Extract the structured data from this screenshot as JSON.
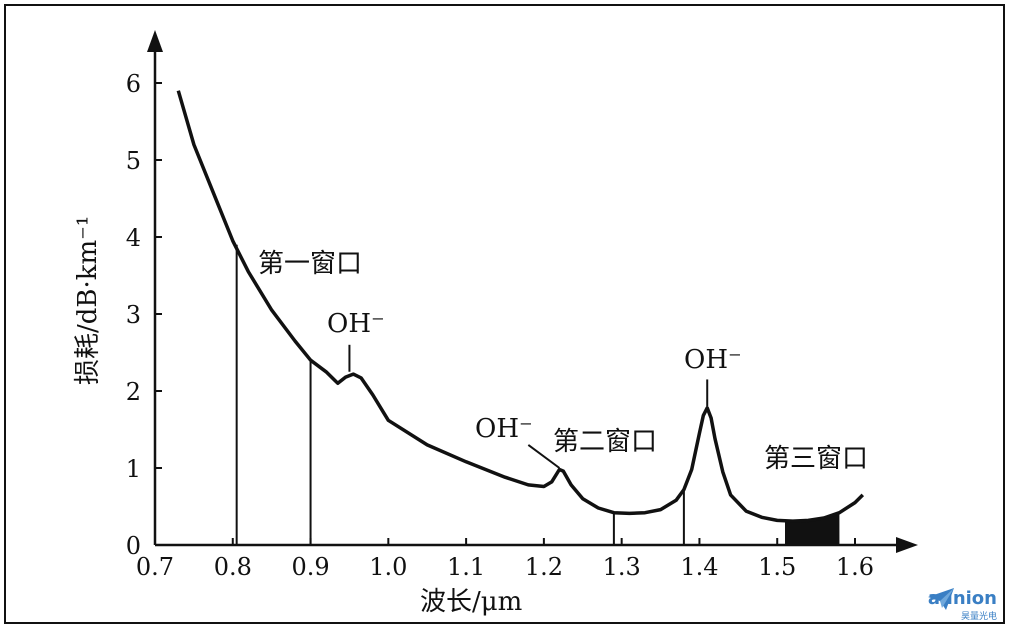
{
  "chart_data": {
    "type": "line",
    "xlabel": "波长/μm",
    "ylabel": "损耗/dB·km⁻¹",
    "x_ticks": [
      "0.7",
      "0.8",
      "0.9",
      "1.0",
      "1.1",
      "1.2",
      "1.3",
      "1.4",
      "1.5",
      "1.6"
    ],
    "y_ticks": [
      "0",
      "1",
      "2",
      "3",
      "4",
      "5",
      "6"
    ],
    "xlim": [
      0.7,
      1.62
    ],
    "ylim": [
      0,
      6.5
    ],
    "series": [
      {
        "x": [
          0.73,
          0.75,
          0.78,
          0.8,
          0.82,
          0.85,
          0.88,
          0.9,
          0.92,
          0.935,
          0.945,
          0.955,
          0.965,
          0.98,
          1.0,
          1.05,
          1.1,
          1.15,
          1.18,
          1.2,
          1.21,
          1.22,
          1.225,
          1.235,
          1.25,
          1.27,
          1.29,
          1.31,
          1.33,
          1.35,
          1.37,
          1.38,
          1.39,
          1.4,
          1.405,
          1.41,
          1.415,
          1.42,
          1.43,
          1.44,
          1.46,
          1.48,
          1.5,
          1.52,
          1.54,
          1.56,
          1.58,
          1.6,
          1.61
        ],
        "y": [
          5.9,
          5.2,
          4.45,
          3.95,
          3.55,
          3.05,
          2.65,
          2.4,
          2.25,
          2.1,
          2.18,
          2.22,
          2.17,
          1.95,
          1.62,
          1.3,
          1.08,
          0.88,
          0.78,
          0.76,
          0.82,
          0.98,
          0.96,
          0.78,
          0.6,
          0.48,
          0.42,
          0.41,
          0.42,
          0.46,
          0.58,
          0.72,
          0.98,
          1.45,
          1.68,
          1.78,
          1.65,
          1.38,
          0.95,
          0.65,
          0.44,
          0.36,
          0.32,
          0.31,
          0.32,
          0.35,
          0.42,
          0.55,
          0.65
        ]
      }
    ],
    "window_lines": [
      {
        "x": 0.805,
        "y": 3.9
      },
      {
        "x": 0.9,
        "y": 2.4
      },
      {
        "x": 1.29,
        "y": 0.42
      },
      {
        "x": 1.38,
        "y": 0.72
      }
    ],
    "shaded_window": {
      "x_from": 1.51,
      "x_to": 1.58
    },
    "annotations": [
      {
        "text": "第一窗口"
      },
      {
        "text": "OH⁻"
      },
      {
        "text": "OH⁻"
      },
      {
        "text": "第二窗口"
      },
      {
        "text": "OH⁻"
      },
      {
        "text": "第三窗口"
      }
    ]
  },
  "watermark": {
    "name": "aunion",
    "sub": "昊量光电"
  }
}
